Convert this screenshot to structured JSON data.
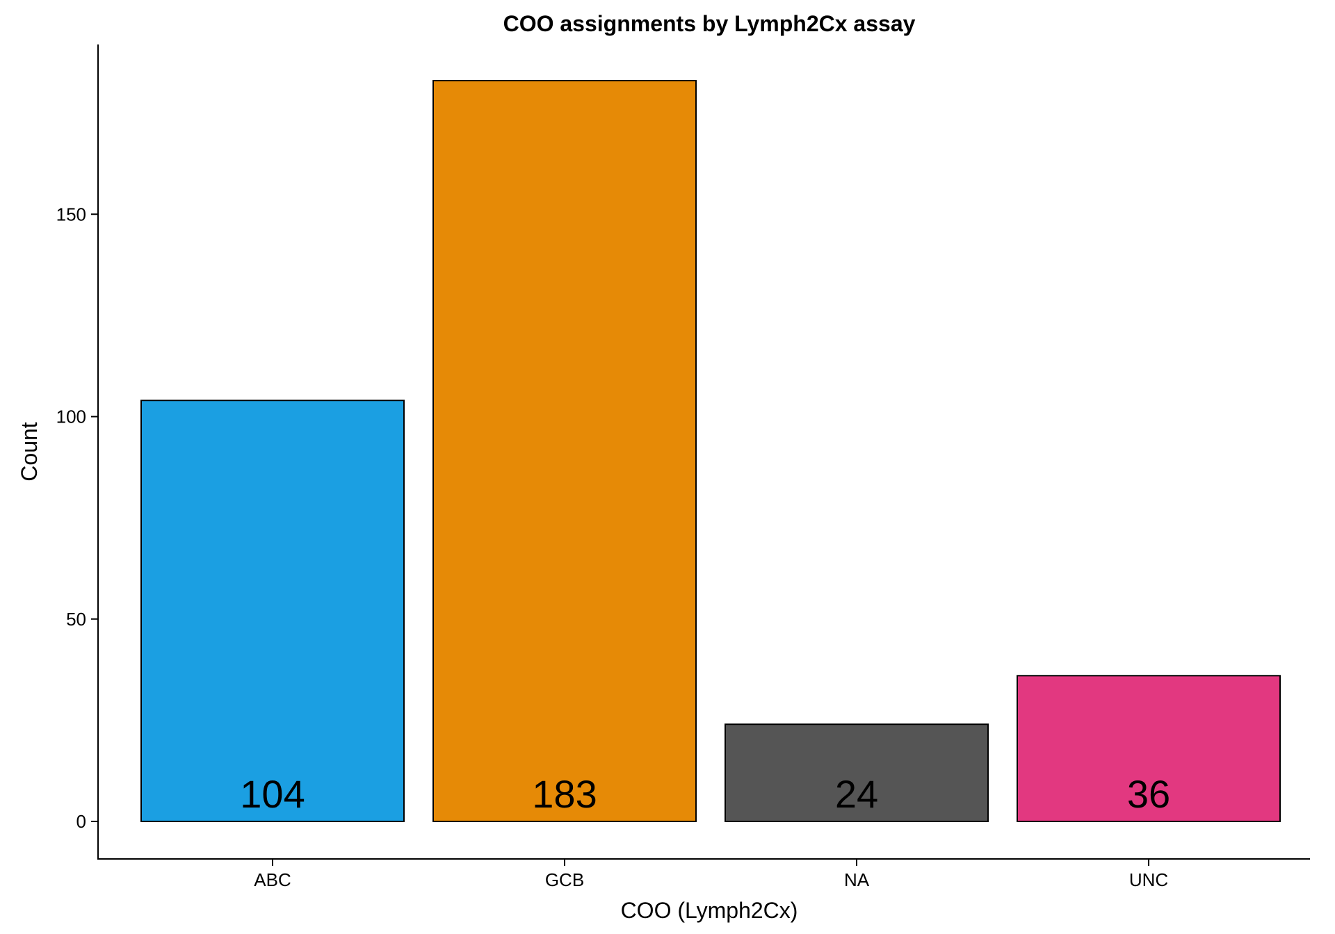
{
  "chart_data": {
    "type": "bar",
    "title": "COO assignments by Lymph2Cx assay",
    "xlabel": "COO (Lymph2Cx)",
    "ylabel": "Count",
    "categories": [
      "ABC",
      "GCB",
      "NA",
      "UNC"
    ],
    "values": [
      104,
      183,
      24,
      36
    ],
    "data_labels": [
      "104",
      "183",
      "24",
      "36"
    ],
    "colors": [
      "#1b9fe2",
      "#e68a06",
      "#555555",
      "#e23880"
    ],
    "ylim": [
      -9,
      192
    ],
    "yticks": [
      0,
      50,
      100,
      150
    ],
    "ytick_labels": [
      "0",
      "50",
      "100",
      "150"
    ],
    "grid": false,
    "legend": "none"
  }
}
